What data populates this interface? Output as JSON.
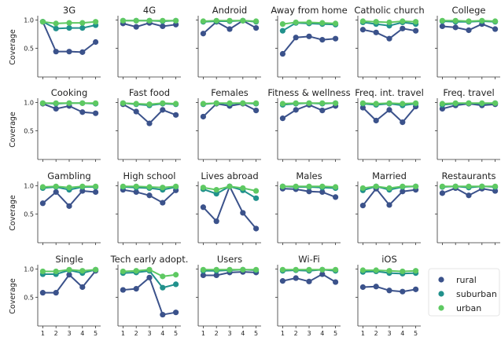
{
  "legend": {
    "entries": [
      {
        "name": "rural",
        "color": "#3b528b"
      },
      {
        "name": "suburban",
        "color": "#21918c"
      },
      {
        "name": "urban",
        "color": "#5ec962"
      }
    ],
    "placement": "bottom-right"
  },
  "y_axis_label": "Coverage",
  "chart_data": {
    "type": "line",
    "x": [
      1,
      2,
      3,
      4,
      5
    ],
    "x_tick_labels": [
      "1",
      "2",
      "3",
      "4",
      "5"
    ],
    "y_ticks": [
      0.5,
      1.0
    ],
    "y_tick_labels": [
      "0.5",
      "1.0"
    ],
    "ylim": [
      0.1,
      1.05
    ],
    "grid": false,
    "panels": [
      {
        "title": "3G",
        "series": [
          {
            "name": "rural",
            "values": [
              0.97,
              0.44,
              0.44,
              0.43,
              0.61
            ]
          },
          {
            "name": "suburban",
            "values": [
              0.97,
              0.85,
              0.86,
              0.86,
              0.91
            ]
          },
          {
            "name": "urban",
            "values": [
              0.97,
              0.94,
              0.95,
              0.95,
              0.97
            ]
          }
        ]
      },
      {
        "title": "4G",
        "series": [
          {
            "name": "rural",
            "values": [
              0.94,
              0.88,
              0.95,
              0.89,
              0.92
            ]
          },
          {
            "name": "suburban",
            "values": [
              0.99,
              0.99,
              0.99,
              0.98,
              0.99
            ]
          },
          {
            "name": "urban",
            "values": [
              0.99,
              0.99,
              0.99,
              0.99,
              0.99
            ]
          }
        ]
      },
      {
        "title": "Android",
        "series": [
          {
            "name": "rural",
            "values": [
              0.76,
              0.97,
              0.84,
              0.99,
              0.86
            ]
          },
          {
            "name": "suburban",
            "values": [
              0.97,
              0.98,
              0.98,
              0.99,
              0.97
            ]
          },
          {
            "name": "urban",
            "values": [
              0.98,
              0.99,
              0.99,
              0.99,
              0.98
            ]
          }
        ]
      },
      {
        "title": "Away from home",
        "series": [
          {
            "name": "rural",
            "values": [
              0.4,
              0.69,
              0.71,
              0.65,
              0.67
            ]
          },
          {
            "name": "suburban",
            "values": [
              0.81,
              0.95,
              0.94,
              0.93,
              0.92
            ]
          },
          {
            "name": "urban",
            "values": [
              0.93,
              0.96,
              0.96,
              0.95,
              0.94
            ]
          }
        ]
      },
      {
        "title": "Catholic church",
        "series": [
          {
            "name": "rural",
            "values": [
              0.83,
              0.78,
              0.67,
              0.85,
              0.81
            ]
          },
          {
            "name": "suburban",
            "values": [
              0.96,
              0.93,
              0.9,
              0.96,
              0.93
            ]
          },
          {
            "name": "urban",
            "values": [
              0.98,
              0.97,
              0.96,
              0.98,
              0.97
            ]
          }
        ]
      },
      {
        "title": "College",
        "series": [
          {
            "name": "rural",
            "values": [
              0.89,
              0.87,
              0.82,
              0.93,
              0.84
            ]
          },
          {
            "name": "suburban",
            "values": [
              0.98,
              0.97,
              0.97,
              0.98,
              0.97
            ]
          },
          {
            "name": "urban",
            "values": [
              0.99,
              0.99,
              0.98,
              0.99,
              0.98
            ]
          }
        ]
      },
      {
        "title": "Cooking",
        "series": [
          {
            "name": "rural",
            "values": [
              0.98,
              0.89,
              0.94,
              0.83,
              0.81
            ]
          },
          {
            "name": "suburban",
            "values": [
              0.99,
              0.98,
              0.99,
              0.99,
              0.98
            ]
          },
          {
            "name": "urban",
            "values": [
              0.99,
              0.99,
              0.99,
              0.99,
              0.99
            ]
          }
        ]
      },
      {
        "title": "Fast food",
        "series": [
          {
            "name": "rural",
            "values": [
              0.97,
              0.84,
              0.63,
              0.87,
              0.78
            ]
          },
          {
            "name": "suburban",
            "values": [
              0.99,
              0.97,
              0.95,
              0.98,
              0.97
            ]
          },
          {
            "name": "urban",
            "values": [
              0.99,
              0.98,
              0.97,
              0.99,
              0.98
            ]
          }
        ]
      },
      {
        "title": "Females",
        "series": [
          {
            "name": "rural",
            "values": [
              0.75,
              0.98,
              0.94,
              0.98,
              0.86
            ]
          },
          {
            "name": "suburban",
            "values": [
              0.97,
              0.99,
              0.98,
              0.99,
              0.98
            ]
          },
          {
            "name": "urban",
            "values": [
              0.98,
              0.99,
              0.99,
              0.99,
              0.99
            ]
          }
        ]
      },
      {
        "title": "Fitness & wellness",
        "series": [
          {
            "name": "rural",
            "values": [
              0.72,
              0.87,
              0.96,
              0.86,
              0.94
            ]
          },
          {
            "name": "suburban",
            "values": [
              0.96,
              0.98,
              0.99,
              0.98,
              0.99
            ]
          },
          {
            "name": "urban",
            "values": [
              0.98,
              0.99,
              0.99,
              0.99,
              0.99
            ]
          }
        ]
      },
      {
        "title": "Freq. int. travel",
        "series": [
          {
            "name": "rural",
            "values": [
              0.91,
              0.68,
              0.87,
              0.65,
              0.93
            ]
          },
          {
            "name": "suburban",
            "values": [
              0.98,
              0.96,
              0.98,
              0.95,
              0.98
            ]
          },
          {
            "name": "urban",
            "values": [
              0.99,
              0.98,
              0.99,
              0.98,
              0.99
            ]
          }
        ]
      },
      {
        "title": "Freq. travel",
        "series": [
          {
            "name": "rural",
            "values": [
              0.89,
              0.95,
              0.98,
              0.95,
              0.97
            ]
          },
          {
            "name": "suburban",
            "values": [
              0.96,
              0.98,
              0.99,
              0.98,
              0.99
            ]
          },
          {
            "name": "urban",
            "values": [
              0.98,
              0.99,
              0.99,
              0.99,
              0.99
            ]
          }
        ]
      },
      {
        "title": "Gambling",
        "series": [
          {
            "name": "rural",
            "values": [
              0.69,
              0.89,
              0.64,
              0.91,
              0.89
            ]
          },
          {
            "name": "suburban",
            "values": [
              0.96,
              0.98,
              0.93,
              0.98,
              0.98
            ]
          },
          {
            "name": "urban",
            "values": [
              0.98,
              0.99,
              0.97,
              0.99,
              0.99
            ]
          }
        ]
      },
      {
        "title": "High school",
        "series": [
          {
            "name": "rural",
            "values": [
              0.93,
              0.89,
              0.83,
              0.7,
              0.92
            ]
          },
          {
            "name": "suburban",
            "values": [
              0.98,
              0.97,
              0.96,
              0.93,
              0.98
            ]
          },
          {
            "name": "urban",
            "values": [
              0.99,
              0.99,
              0.98,
              0.97,
              0.99
            ]
          }
        ]
      },
      {
        "title": "Lives abroad",
        "series": [
          {
            "name": "rural",
            "values": [
              0.62,
              0.37,
              0.99,
              0.52,
              0.24
            ]
          },
          {
            "name": "suburban",
            "values": [
              0.94,
              0.86,
              0.99,
              0.92,
              0.78
            ]
          },
          {
            "name": "urban",
            "values": [
              0.97,
              0.93,
              0.99,
              0.96,
              0.91
            ]
          }
        ]
      },
      {
        "title": "Males",
        "series": [
          {
            "name": "rural",
            "values": [
              0.95,
              0.94,
              0.9,
              0.89,
              0.8
            ]
          },
          {
            "name": "suburban",
            "values": [
              0.99,
              0.98,
              0.98,
              0.97,
              0.96
            ]
          },
          {
            "name": "urban",
            "values": [
              0.99,
              0.99,
              0.99,
              0.99,
              0.98
            ]
          }
        ]
      },
      {
        "title": "Married",
        "series": [
          {
            "name": "rural",
            "values": [
              0.65,
              0.95,
              0.66,
              0.9,
              0.93
            ]
          },
          {
            "name": "suburban",
            "values": [
              0.92,
              0.99,
              0.93,
              0.98,
              0.99
            ]
          },
          {
            "name": "urban",
            "values": [
              0.96,
              0.99,
              0.96,
              0.99,
              0.99
            ]
          }
        ]
      },
      {
        "title": "Restaurants",
        "series": [
          {
            "name": "rural",
            "values": [
              0.87,
              0.96,
              0.83,
              0.95,
              0.91
            ]
          },
          {
            "name": "suburban",
            "values": [
              0.98,
              0.99,
              0.97,
              0.99,
              0.98
            ]
          },
          {
            "name": "urban",
            "values": [
              0.99,
              0.99,
              0.99,
              0.99,
              0.99
            ]
          }
        ]
      },
      {
        "title": "Single",
        "series": [
          {
            "name": "rural",
            "values": [
              0.58,
              0.58,
              0.9,
              0.68,
              0.97
            ]
          },
          {
            "name": "suburban",
            "values": [
              0.91,
              0.91,
              0.98,
              0.93,
              0.99
            ]
          },
          {
            "name": "urban",
            "values": [
              0.96,
              0.96,
              0.99,
              0.97,
              0.99
            ]
          }
        ]
      },
      {
        "title": "Tech early adopt.",
        "series": [
          {
            "name": "rural",
            "values": [
              0.63,
              0.65,
              0.85,
              0.19,
              0.23
            ]
          },
          {
            "name": "suburban",
            "values": [
              0.93,
              0.94,
              0.97,
              0.67,
              0.73
            ]
          },
          {
            "name": "urban",
            "values": [
              0.96,
              0.97,
              0.99,
              0.87,
              0.9
            ]
          }
        ]
      },
      {
        "title": "Users",
        "series": [
          {
            "name": "rural",
            "values": [
              0.89,
              0.89,
              0.94,
              0.95,
              0.94
            ]
          },
          {
            "name": "suburban",
            "values": [
              0.97,
              0.97,
              0.98,
              0.99,
              0.98
            ]
          },
          {
            "name": "urban",
            "values": [
              0.99,
              0.99,
              0.99,
              0.99,
              0.99
            ]
          }
        ]
      },
      {
        "title": "Wi-Fi",
        "series": [
          {
            "name": "rural",
            "values": [
              0.79,
              0.84,
              0.78,
              0.91,
              0.77
            ]
          },
          {
            "name": "suburban",
            "values": [
              0.97,
              0.98,
              0.97,
              0.99,
              0.97
            ]
          },
          {
            "name": "urban",
            "values": [
              0.99,
              0.99,
              0.99,
              0.99,
              0.99
            ]
          }
        ]
      },
      {
        "title": "iOS",
        "series": [
          {
            "name": "rural",
            "values": [
              0.68,
              0.69,
              0.62,
              0.6,
              0.64
            ]
          },
          {
            "name": "suburban",
            "values": [
              0.95,
              0.96,
              0.93,
              0.92,
              0.93
            ]
          },
          {
            "name": "urban",
            "values": [
              0.98,
              0.98,
              0.97,
              0.96,
              0.97
            ]
          }
        ]
      }
    ]
  }
}
